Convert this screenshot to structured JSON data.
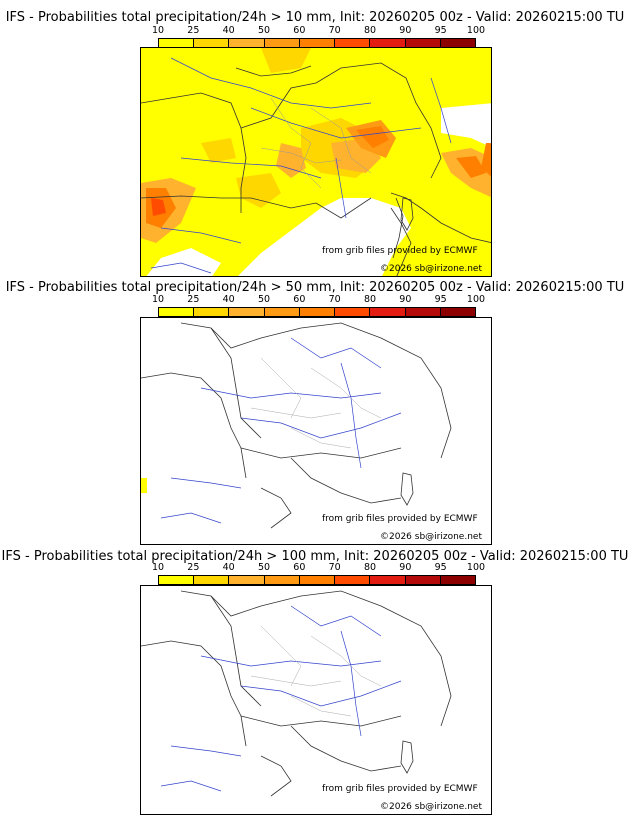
{
  "legend": {
    "ticks": [
      "10",
      "25",
      "40",
      "50",
      "60",
      "70",
      "80",
      "90",
      "95",
      "100"
    ],
    "colors": [
      "#ffff00",
      "#ffd700",
      "#ffb22e",
      "#ff9a14",
      "#ff7f00",
      "#ff4c00",
      "#e21c10",
      "#b40a0a",
      "#8c0000",
      "#5a0000"
    ]
  },
  "panels": [
    {
      "title": "IFS - Probabilities total precipitation/24h > 10 mm, Init: 20260205 00z - Valid: 20260215:00 TU",
      "credit": "from grib files provided by ECMWF",
      "copyright": "©2026 sb@irizone.net"
    },
    {
      "title": "IFS - Probabilities total precipitation/24h > 50 mm, Init: 20260205 00z - Valid: 20260215:00 TU",
      "credit": "from grib files provided by ECMWF",
      "copyright": "©2026 sb@irizone.net"
    },
    {
      "title": "IFS - Probabilities total precipitation/24h > 100 mm, Init: 20260205 00z - Valid: 20260215:00 TU",
      "credit": "from grib files provided by ECMWF",
      "copyright": "©2026 sb@irizone.net"
    }
  ]
}
